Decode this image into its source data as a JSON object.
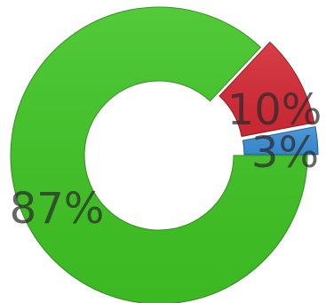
{
  "chart_data": {
    "type": "pie",
    "variant": "donut",
    "slices": [
      {
        "label": "87%",
        "value": 87,
        "color": "#3fc424",
        "stroke": "#2e8f1a",
        "exploded": false
      },
      {
        "label": "10%",
        "value": 10,
        "color": "#d42a35",
        "stroke": "#8e1a22",
        "exploded": true
      },
      {
        "label": "3%",
        "value": 3,
        "color": "#3b8fd6",
        "stroke": "#1f5d92",
        "exploded": true
      }
    ],
    "label_color": "#2a2a2a",
    "title": "",
    "legend": "none"
  }
}
